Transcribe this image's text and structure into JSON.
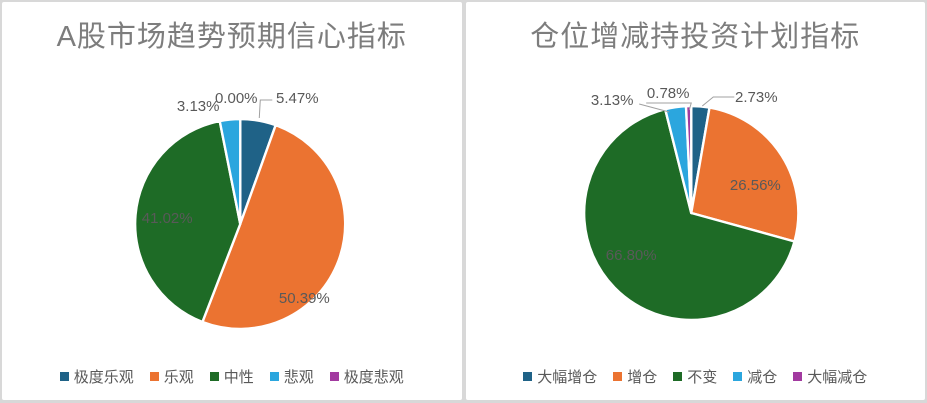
{
  "frame": {
    "border_color": "#d8d8d8",
    "panel_background": "#ffffff"
  },
  "text_colors": {
    "title": "#7d7d7d",
    "data_label": "#595959",
    "legend": "#595959",
    "leader_line": "#a0a0a0"
  },
  "chart_data": [
    {
      "type": "pie",
      "title": "A股市场趋势预期信心指标",
      "categories": [
        "极度乐观",
        "乐观",
        "中性",
        "悲观",
        "极度悲观"
      ],
      "values": [
        5.47,
        50.39,
        41.02,
        3.13,
        0.0
      ],
      "data_labels": [
        "5.47%",
        "50.39%",
        "41.02%",
        "3.13%",
        "0.00%"
      ],
      "colors": [
        "#1f6287",
        "#eb7331",
        "#1e6b26",
        "#2ba6de",
        "#a23aa0"
      ],
      "start_angle_deg": 0,
      "direction": "clockwise",
      "slice_border_color": "#ffffff",
      "legend_position": "bottom"
    },
    {
      "type": "pie",
      "title": "仓位增减持投资计划指标",
      "categories": [
        "大幅增仓",
        "增仓",
        "不变",
        "减仓",
        "大幅减仓"
      ],
      "values": [
        2.73,
        26.56,
        66.8,
        3.13,
        0.78
      ],
      "data_labels": [
        "2.73%",
        "26.56%",
        "66.80%",
        "3.13%",
        "0.78%"
      ],
      "colors": [
        "#1f6287",
        "#eb7331",
        "#1e6b26",
        "#2ba6de",
        "#a23aa0"
      ],
      "start_angle_deg": 0,
      "direction": "clockwise",
      "slice_border_color": "#ffffff",
      "legend_position": "bottom"
    }
  ]
}
